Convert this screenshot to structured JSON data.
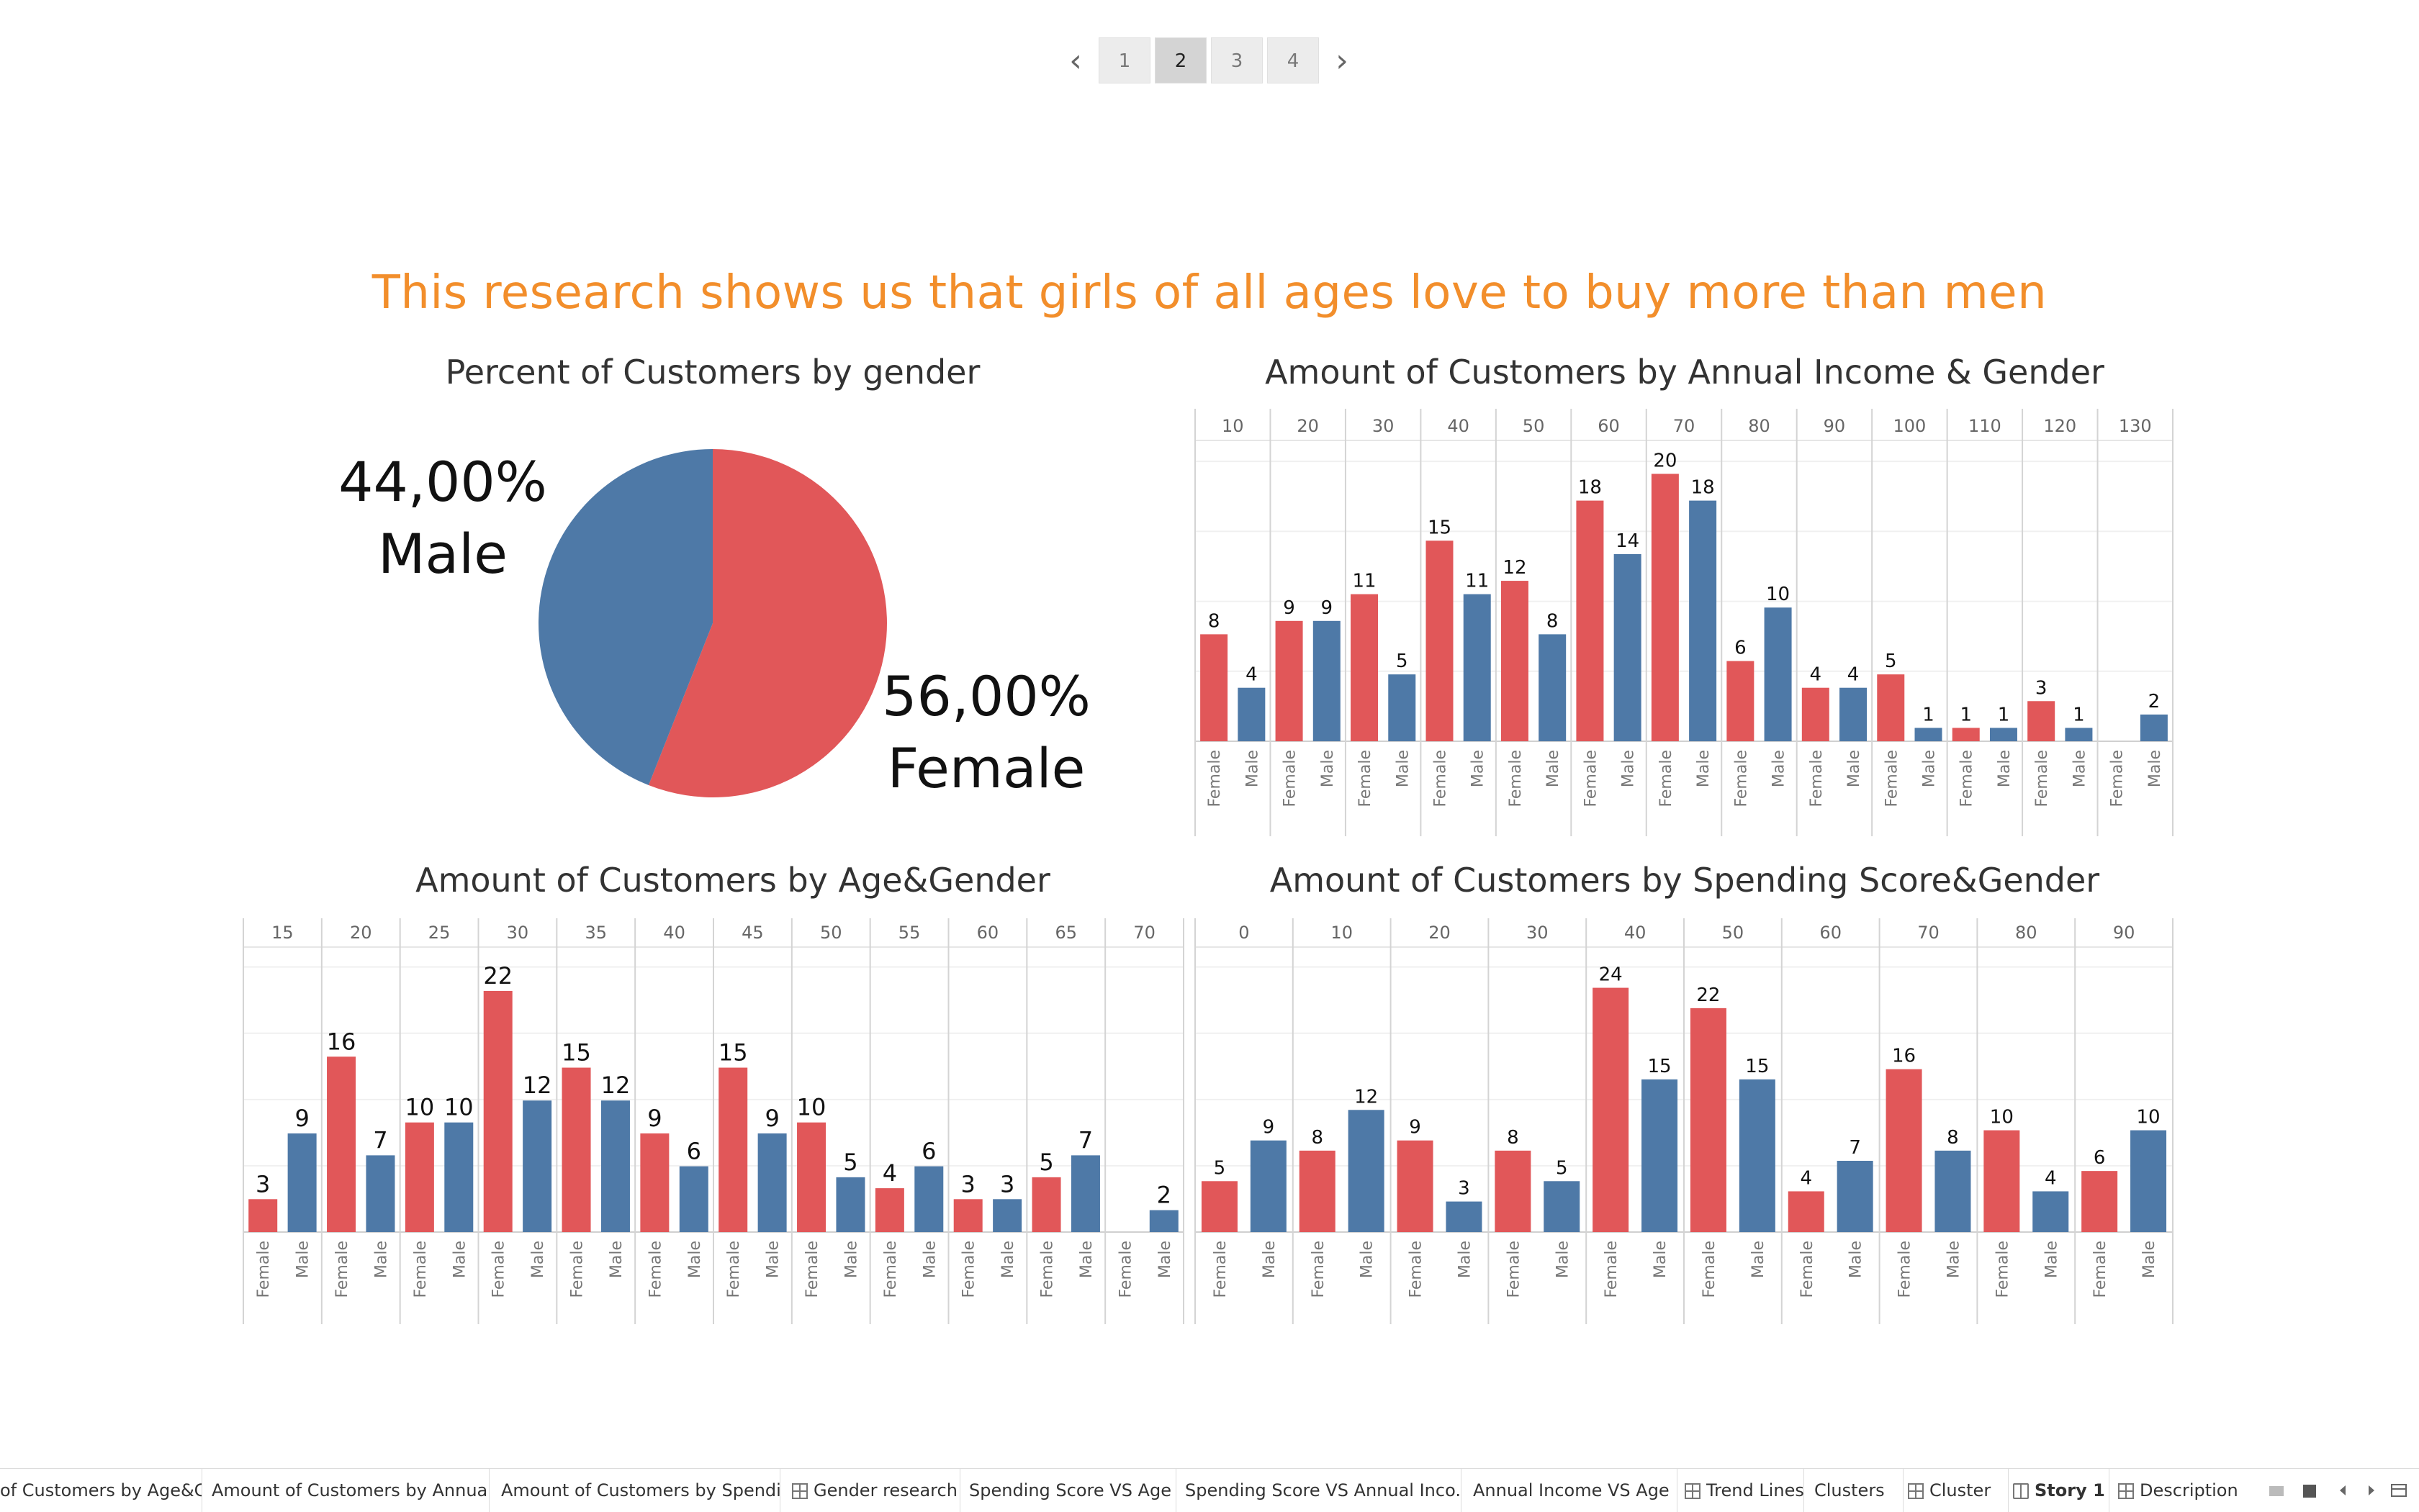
{
  "story_nav": {
    "pages": [
      "1",
      "2",
      "3",
      "4"
    ],
    "active_index": 1,
    "prev_icon": "chevron-left-icon",
    "next_icon": "chevron-right-icon"
  },
  "headline": "This research shows us that girls of all ages love to buy more than men",
  "colors": {
    "female": "#e15759",
    "male": "#4e79a7",
    "headline": "#f28e2b"
  },
  "pie": {
    "title": "Percent of Customers by gender",
    "male_pct": "44,00%",
    "male_label": "Male",
    "female_pct": "56,00%",
    "female_label": "Female"
  },
  "chart_data": [
    {
      "type": "pie",
      "title": "Percent of Customers by gender",
      "slices": [
        {
          "name": "Male",
          "value": 44.0
        },
        {
          "name": "Female",
          "value": 56.0
        }
      ]
    },
    {
      "type": "bar",
      "title": "Amount of Customers by Annual Income & Gender",
      "categories": [
        "10",
        "20",
        "30",
        "40",
        "50",
        "60",
        "70",
        "80",
        "90",
        "100",
        "110",
        "120",
        "130"
      ],
      "sub_categories": [
        "Female",
        "Male"
      ],
      "series": [
        {
          "name": "Female",
          "values": [
            8,
            9,
            11,
            15,
            12,
            18,
            20,
            6,
            4,
            5,
            1,
            3,
            null
          ]
        },
        {
          "name": "Male",
          "values": [
            4,
            9,
            5,
            11,
            8,
            14,
            18,
            10,
            4,
            1,
            1,
            1,
            2
          ]
        }
      ],
      "ylim": [
        0,
        22.5
      ]
    },
    {
      "type": "bar",
      "title": "Amount of Customers by Age&Gender",
      "categories": [
        "15",
        "20",
        "25",
        "30",
        "35",
        "40",
        "45",
        "50",
        "55",
        "60",
        "65",
        "70"
      ],
      "sub_categories": [
        "Female",
        "Male"
      ],
      "series": [
        {
          "name": "Female",
          "values": [
            3,
            16,
            10,
            22,
            15,
            9,
            15,
            10,
            4,
            3,
            5,
            null
          ]
        },
        {
          "name": "Male",
          "values": [
            9,
            7,
            10,
            12,
            12,
            6,
            9,
            5,
            6,
            3,
            7,
            2
          ]
        }
      ],
      "ylim": [
        0,
        26
      ]
    },
    {
      "type": "bar",
      "title": "Amount of Customers by Spending Score&Gender",
      "categories": [
        "0",
        "10",
        "20",
        "30",
        "40",
        "50",
        "60",
        "70",
        "80",
        "90"
      ],
      "sub_categories": [
        "Female",
        "Male"
      ],
      "series": [
        {
          "name": "Female",
          "values": [
            5,
            8,
            9,
            8,
            24,
            22,
            4,
            16,
            10,
            6
          ]
        },
        {
          "name": "Male",
          "values": [
            9,
            12,
            3,
            5,
            15,
            15,
            7,
            8,
            4,
            10
          ]
        }
      ],
      "ylim": [
        0,
        28
      ]
    }
  ],
  "tabs": [
    {
      "label": "of Customers by Age&G...",
      "icon": ""
    },
    {
      "label": "Amount of Customers by Annual...",
      "icon": ""
    },
    {
      "label": "Amount of Customers by Spendi...",
      "icon": ""
    },
    {
      "label": "Gender research",
      "icon": "grid-icon"
    },
    {
      "label": "Spending Score VS Age",
      "icon": ""
    },
    {
      "label": "Spending Score VS Annual Inco...",
      "icon": ""
    },
    {
      "label": "Annual Income VS Age",
      "icon": ""
    },
    {
      "label": "Trend Lines",
      "icon": "grid-icon"
    },
    {
      "label": "Clusters",
      "icon": ""
    },
    {
      "label": "Cluster",
      "icon": "grid-icon"
    },
    {
      "label": "Story 1",
      "icon": "book-icon",
      "active": true
    },
    {
      "label": "Description",
      "icon": "grid-icon"
    }
  ]
}
